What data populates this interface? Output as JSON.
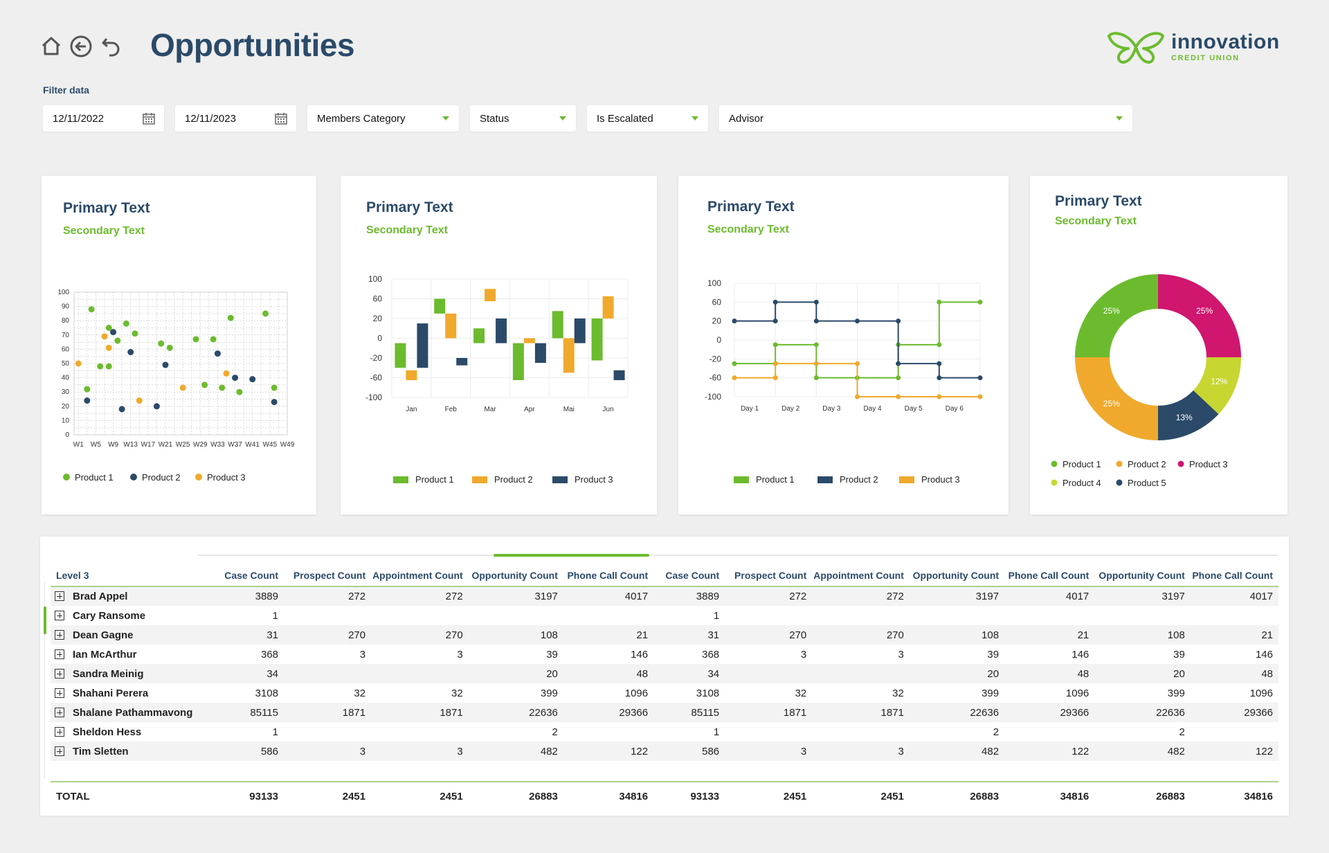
{
  "page": {
    "title": "Opportunities"
  },
  "brand": {
    "name": "innovation",
    "sub": "CREDIT UNION",
    "colors": {
      "green": "#6cbb2e",
      "navy": "#2b4a69",
      "orange": "#f0a92c",
      "magenta": "#d0166f",
      "lime": "#c7d631"
    }
  },
  "filters": {
    "label": "Filter data",
    "date_from": "12/11/2022",
    "date_to": "12/11/2023",
    "members_category": "Members Category",
    "status": "Status",
    "is_escalated": "Is Escalated",
    "advisor": "Advisor"
  },
  "cards": [
    {
      "title": "Primary Text",
      "subtitle": "Secondary Text"
    },
    {
      "title": "Primary Text",
      "subtitle": "Secondary Text"
    },
    {
      "title": "Primary Text",
      "subtitle": "Secondary Text"
    },
    {
      "title": "Primary Text",
      "subtitle": "Secondary Text"
    }
  ],
  "chart_data": [
    {
      "type": "scatter",
      "x_ticks": [
        "W1",
        "W5",
        "W9",
        "W13",
        "W17",
        "W21",
        "W25",
        "W29",
        "W33",
        "W37",
        "W41",
        "W45",
        "W49"
      ],
      "y_ticks": [
        0,
        10,
        20,
        30,
        40,
        50,
        60,
        70,
        80,
        90,
        100
      ],
      "ylim": [
        0,
        100
      ],
      "grid": true,
      "legend_position": "bottom",
      "series": [
        {
          "name": "Product 1",
          "color": "#6cbb2e",
          "points": [
            [
              3,
              32
            ],
            [
              4,
              88
            ],
            [
              6,
              48
            ],
            [
              8,
              75
            ],
            [
              8,
              48
            ],
            [
              10,
              66
            ],
            [
              12,
              78
            ],
            [
              14,
              71
            ],
            [
              20,
              64
            ],
            [
              22,
              61
            ],
            [
              28,
              67
            ],
            [
              30,
              35
            ],
            [
              32,
              67
            ],
            [
              34,
              33
            ],
            [
              36,
              82
            ],
            [
              38,
              30
            ],
            [
              44,
              85
            ],
            [
              46,
              33
            ]
          ]
        },
        {
          "name": "Product 2",
          "color": "#2b4a69",
          "points": [
            [
              3,
              24
            ],
            [
              11,
              18
            ],
            [
              9,
              72
            ],
            [
              13,
              58
            ],
            [
              19,
              20
            ],
            [
              21,
              49
            ],
            [
              33,
              57
            ],
            [
              37,
              40
            ],
            [
              41,
              39
            ],
            [
              46,
              23
            ]
          ]
        },
        {
          "name": "Product 3",
          "color": "#f0a92c",
          "points": [
            [
              1,
              50
            ],
            [
              7,
              69
            ],
            [
              8,
              61
            ],
            [
              15,
              24
            ],
            [
              25,
              33
            ],
            [
              35,
              43
            ]
          ]
        }
      ]
    },
    {
      "type": "bar",
      "subtype": "floating",
      "categories": [
        "Jan",
        "Feb",
        "Mar",
        "Apr",
        "Mai",
        "Jun"
      ],
      "y_ticks": [
        100,
        60,
        20,
        0,
        -20,
        -60,
        -100
      ],
      "legend_position": "bottom",
      "series": [
        {
          "name": "Product 1",
          "color": "#6cbb2e",
          "ranges": [
            [
              -40,
              -5
            ],
            [
              30,
              60
            ],
            [
              -5,
              10
            ],
            [
              -5,
              -65
            ],
            [
              0,
              35
            ],
            [
              -25,
              20
            ]
          ]
        },
        {
          "name": "Product 2",
          "color": "#f0a92c",
          "ranges": [
            [
              -45,
              -65
            ],
            [
              0,
              30
            ],
            [
              55,
              80
            ],
            [
              0,
              -5
            ],
            [
              -50,
              0
            ],
            [
              20,
              65
            ]
          ]
        },
        {
          "name": "Product 3",
          "color": "#2b4a69",
          "ranges": [
            [
              15,
              -40
            ],
            [
              -20,
              -35
            ],
            [
              20,
              -5
            ],
            [
              -5,
              -30
            ],
            [
              20,
              -5
            ],
            [
              -45,
              -65
            ]
          ]
        }
      ]
    },
    {
      "type": "line",
      "subtype": "step",
      "categories": [
        "Day 1",
        "Day 2",
        "Day 3",
        "Day 4",
        "Day 5",
        "Day 6"
      ],
      "y_ticks": [
        100,
        60,
        20,
        0,
        -20,
        -60,
        -100
      ],
      "legend_position": "bottom",
      "series": [
        {
          "name": "Product 1",
          "color": "#6cbb2e",
          "steps": [
            [
              0,
              -30
            ],
            [
              1,
              -30
            ],
            [
              1,
              -5
            ],
            [
              2,
              -5
            ],
            [
              2,
              -60
            ],
            [
              3,
              -60
            ],
            [
              4,
              -60
            ],
            [
              4,
              -5
            ],
            [
              5,
              -5
            ],
            [
              5,
              60
            ],
            [
              6,
              60
            ]
          ]
        },
        {
          "name": "Product 2",
          "color": "#2b4a69",
          "steps": [
            [
              0,
              20
            ],
            [
              1,
              20
            ],
            [
              1,
              60
            ],
            [
              2,
              60
            ],
            [
              2,
              20
            ],
            [
              3,
              20
            ],
            [
              4,
              20
            ],
            [
              4,
              -30
            ],
            [
              5,
              -30
            ],
            [
              5,
              -60
            ],
            [
              6,
              -60
            ]
          ]
        },
        {
          "name": "Product 3",
          "color": "#f0a92c",
          "steps": [
            [
              0,
              -60
            ],
            [
              1,
              -60
            ],
            [
              1,
              -30
            ],
            [
              2,
              -30
            ],
            [
              3,
              -30
            ],
            [
              3,
              -100
            ],
            [
              4,
              -100
            ],
            [
              5,
              -100
            ],
            [
              6,
              -100
            ]
          ]
        }
      ]
    },
    {
      "type": "pie",
      "subtype": "donut",
      "legend_position": "bottom",
      "slices": [
        {
          "name": "Product 1",
          "value": 25,
          "label": "25%",
          "color": "#6cbb2e"
        },
        {
          "name": "Product 3",
          "value": 25,
          "label": "25%",
          "color": "#d0166f"
        },
        {
          "name": "Product 4",
          "value": 12,
          "label": "12%",
          "color": "#c7d631"
        },
        {
          "name": "Product 5",
          "value": 13,
          "label": "13%",
          "color": "#2b4a69"
        },
        {
          "name": "Product 2",
          "value": 25,
          "label": "25%",
          "color": "#f0a92c"
        }
      ],
      "legend": [
        {
          "name": "Product 1",
          "color": "#6cbb2e"
        },
        {
          "name": "Product 2",
          "color": "#f0a92c"
        },
        {
          "name": "Product 3",
          "color": "#d0166f"
        },
        {
          "name": "Product 4",
          "color": "#c7d631"
        },
        {
          "name": "Product 5",
          "color": "#2b4a69"
        }
      ]
    }
  ],
  "table": {
    "first_header": "Level 3",
    "headers": [
      "Case Count",
      "Prospect Count",
      "Appointment Count",
      "Opportunity Count",
      "Phone Call Count",
      "Case Count",
      "Prospect Count",
      "Appointment Count",
      "Opportunity Count",
      "Phone Call Count",
      "Opportunity Count",
      "Phone Call Count"
    ],
    "rows": [
      {
        "name": "Brad Appel",
        "values": [
          "3889",
          "272",
          "272",
          "3197",
          "4017",
          "3889",
          "272",
          "272",
          "3197",
          "4017",
          "3197",
          "4017"
        ]
      },
      {
        "name": "Cary Ransome",
        "values": [
          "1",
          "",
          "",
          "",
          "",
          "1",
          "",
          "",
          "",
          "",
          "",
          ""
        ]
      },
      {
        "name": "Dean Gagne",
        "values": [
          "31",
          "270",
          "270",
          "108",
          "21",
          "31",
          "270",
          "270",
          "108",
          "21",
          "108",
          "21"
        ]
      },
      {
        "name": "Ian McArthur",
        "values": [
          "368",
          "3",
          "3",
          "39",
          "146",
          "368",
          "3",
          "3",
          "39",
          "146",
          "39",
          "146"
        ]
      },
      {
        "name": "Sandra Meinig",
        "values": [
          "34",
          "",
          "",
          "20",
          "48",
          "34",
          "",
          "",
          "20",
          "48",
          "20",
          "48"
        ]
      },
      {
        "name": "Shahani Perera",
        "values": [
          "3108",
          "32",
          "32",
          "399",
          "1096",
          "3108",
          "32",
          "32",
          "399",
          "1096",
          "399",
          "1096"
        ]
      },
      {
        "name": "Shalane Pathammavong",
        "values": [
          "85115",
          "1871",
          "1871",
          "22636",
          "29366",
          "85115",
          "1871",
          "1871",
          "22636",
          "29366",
          "22636",
          "29366"
        ]
      },
      {
        "name": "Sheldon Hess",
        "values": [
          "1",
          "",
          "",
          "2",
          "",
          "1",
          "",
          "",
          "2",
          "",
          "2",
          ""
        ]
      },
      {
        "name": "Tim Sletten",
        "values": [
          "586",
          "3",
          "3",
          "482",
          "122",
          "586",
          "3",
          "3",
          "482",
          "122",
          "482",
          "122"
        ]
      }
    ],
    "total": {
      "name": "TOTAL",
      "values": [
        "93133",
        "2451",
        "2451",
        "26883",
        "34816",
        "93133",
        "2451",
        "2451",
        "26883",
        "34816",
        "26883",
        "34816"
      ]
    }
  }
}
